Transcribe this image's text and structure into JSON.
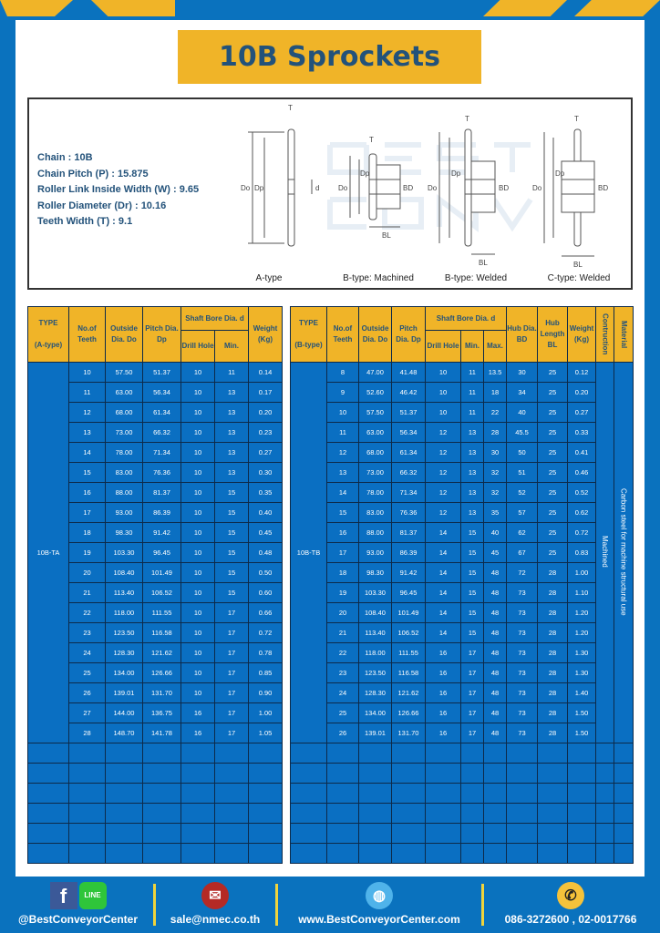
{
  "title": "10B Sprockets",
  "specs": [
    "Chain  :  10B",
    "Chain Pitch (P)  :  15.875",
    "Roller Link Inside Width (W) : 9.65",
    "Roller Diameter (Dr)  : 10.16",
    "Teeth Width (T)  :  9.1"
  ],
  "diagram": {
    "types": [
      "A-type",
      "B-type: Machined",
      "B-type: Welded",
      "C-type: Welded"
    ],
    "labels": {
      "T": "T",
      "Do": "Do",
      "Dp": "Dp",
      "d": "d",
      "BD": "BD",
      "BL": "BL"
    },
    "watermark": "BEST CONVEYOR CENTER"
  },
  "tableA": {
    "headers": {
      "type": "TYPE",
      "type_sub": "(A-type)",
      "teeth": "No.of Teeth",
      "do": "Outside Dia. Do",
      "dp": "Pitch Dia. Dp",
      "shaft": "Shaft Bore Dia. d",
      "drill": "Drill Hole",
      "min": "Min.",
      "weight": "Weight (Kg)"
    },
    "type_value": "10B-TA",
    "rows": [
      [
        "10",
        "57.50",
        "51.37",
        "10",
        "11",
        "0.14"
      ],
      [
        "11",
        "63.00",
        "56.34",
        "10",
        "13",
        "0.17"
      ],
      [
        "12",
        "68.00",
        "61.34",
        "10",
        "13",
        "0.20"
      ],
      [
        "13",
        "73.00",
        "66.32",
        "10",
        "13",
        "0.23"
      ],
      [
        "14",
        "78.00",
        "71.34",
        "10",
        "13",
        "0.27"
      ],
      [
        "15",
        "83.00",
        "76.36",
        "10",
        "13",
        "0.30"
      ],
      [
        "16",
        "88.00",
        "81.37",
        "10",
        "15",
        "0.35"
      ],
      [
        "17",
        "93.00",
        "86.39",
        "10",
        "15",
        "0.40"
      ],
      [
        "18",
        "98.30",
        "91.42",
        "10",
        "15",
        "0.45"
      ],
      [
        "19",
        "103.30",
        "96.45",
        "10",
        "15",
        "0.48"
      ],
      [
        "20",
        "108.40",
        "101.49",
        "10",
        "15",
        "0.50"
      ],
      [
        "21",
        "113.40",
        "106.52",
        "10",
        "15",
        "0.60"
      ],
      [
        "22",
        "118.00",
        "111.55",
        "10",
        "17",
        "0.66"
      ],
      [
        "23",
        "123.50",
        "116.58",
        "10",
        "17",
        "0.72"
      ],
      [
        "24",
        "128.30",
        "121.62",
        "10",
        "17",
        "0.78"
      ],
      [
        "25",
        "134.00",
        "126.66",
        "10",
        "17",
        "0.85"
      ],
      [
        "26",
        "139.01",
        "131.70",
        "10",
        "17",
        "0.90"
      ],
      [
        "27",
        "144.00",
        "136.75",
        "16",
        "17",
        "1.00"
      ],
      [
        "28",
        "148.70",
        "141.78",
        "16",
        "17",
        "1.05"
      ]
    ]
  },
  "tableB": {
    "headers": {
      "type": "TYPE",
      "type_sub": "(B-type)",
      "teeth": "No.of Teeth",
      "do": "Outside Dia. Do",
      "dp": "Pitch Dia. Dp",
      "shaft": "Shaft Bore Dia. d",
      "drill": "Drill Hole",
      "min": "Min.",
      "max": "Max.",
      "bd": "Hub Dia. BD",
      "bl": "Hub Length BL",
      "weight": "Weight (Kg)",
      "construction": "Contruction",
      "material": "Material"
    },
    "type_value": "10B-TB",
    "construction_value": "Machined",
    "material_value": "Carbon steel  for machine structural use",
    "rows": [
      [
        "8",
        "47.00",
        "41.48",
        "10",
        "11",
        "13.5",
        "30",
        "25",
        "0.12"
      ],
      [
        "9",
        "52.60",
        "46.42",
        "10",
        "11",
        "18",
        "34",
        "25",
        "0.20"
      ],
      [
        "10",
        "57.50",
        "51.37",
        "10",
        "11",
        "22",
        "40",
        "25",
        "0.27"
      ],
      [
        "11",
        "63.00",
        "56.34",
        "12",
        "13",
        "28",
        "45.5",
        "25",
        "0.33"
      ],
      [
        "12",
        "68.00",
        "61.34",
        "12",
        "13",
        "30",
        "50",
        "25",
        "0.41"
      ],
      [
        "13",
        "73.00",
        "66.32",
        "12",
        "13",
        "32",
        "51",
        "25",
        "0.46"
      ],
      [
        "14",
        "78.00",
        "71.34",
        "12",
        "13",
        "32",
        "52",
        "25",
        "0.52"
      ],
      [
        "15",
        "83.00",
        "76.36",
        "12",
        "13",
        "35",
        "57",
        "25",
        "0.62"
      ],
      [
        "16",
        "88.00",
        "81.37",
        "14",
        "15",
        "40",
        "62",
        "25",
        "0.72"
      ],
      [
        "17",
        "93.00",
        "86.39",
        "14",
        "15",
        "45",
        "67",
        "25",
        "0.83"
      ],
      [
        "18",
        "98.30",
        "91.42",
        "14",
        "15",
        "48",
        "72",
        "28",
        "1.00"
      ],
      [
        "19",
        "103.30",
        "96.45",
        "14",
        "15",
        "48",
        "73",
        "28",
        "1.10"
      ],
      [
        "20",
        "108.40",
        "101.49",
        "14",
        "15",
        "48",
        "73",
        "28",
        "1.20"
      ],
      [
        "21",
        "113.40",
        "106.52",
        "14",
        "15",
        "48",
        "73",
        "28",
        "1.20"
      ],
      [
        "22",
        "118.00",
        "111.55",
        "16",
        "17",
        "48",
        "73",
        "28",
        "1.30"
      ],
      [
        "23",
        "123.50",
        "116.58",
        "16",
        "17",
        "48",
        "73",
        "28",
        "1.30"
      ],
      [
        "24",
        "128.30",
        "121.62",
        "16",
        "17",
        "48",
        "73",
        "28",
        "1.40"
      ],
      [
        "25",
        "134.00",
        "126.66",
        "16",
        "17",
        "48",
        "73",
        "28",
        "1.50"
      ],
      [
        "26",
        "139.01",
        "131.70",
        "16",
        "17",
        "48",
        "73",
        "28",
        "1.50"
      ]
    ]
  },
  "footer": {
    "social": "@BestConveyorCenter",
    "email": "sale@nmec.co.th",
    "website": "www.BestConveyorCenter.com",
    "phone": "086-3272600 , 02-0017766",
    "line_badge": "LINE",
    "icons": [
      "facebook-icon",
      "line-icon",
      "mail-icon",
      "globe-icon",
      "phone-icon"
    ]
  },
  "colors": {
    "frame": "#0a72be",
    "accent": "#f0b428",
    "title_text": "#23527a",
    "cell": "#0a6fc2"
  }
}
